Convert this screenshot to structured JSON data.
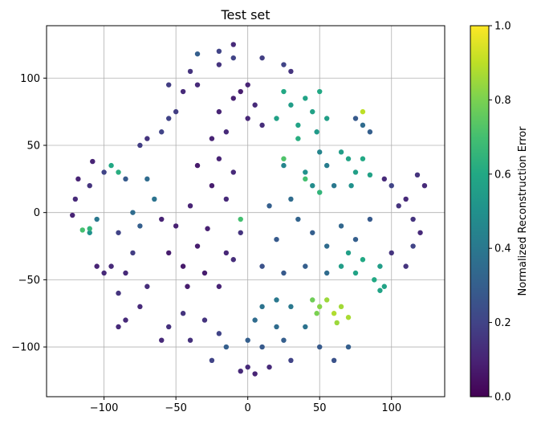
{
  "chart_data": {
    "type": "scatter",
    "title": "Test set",
    "xlabel": "",
    "ylabel": "",
    "xlim": [
      -140,
      137
    ],
    "ylim": [
      -137,
      139
    ],
    "xticks": [
      -100,
      -50,
      0,
      50,
      100
    ],
    "yticks": [
      -100,
      -50,
      0,
      50,
      100
    ],
    "grid": true,
    "colormap": "viridis",
    "colorbar": {
      "label": "Normalized Reconstruction Error",
      "range": [
        0.0,
        1.0
      ],
      "ticks": [
        0.0,
        0.2,
        0.4,
        0.6,
        0.8,
        1.0
      ],
      "tick_labels": [
        "0.0",
        "0.2",
        "0.4",
        "0.6",
        "0.8",
        "1.0"
      ]
    },
    "points": [
      {
        "x": -35,
        "y": -25,
        "c": 0.08
      },
      {
        "x": -45,
        "y": -40,
        "c": 0.07
      },
      {
        "x": -30,
        "y": -45,
        "c": 0.08
      },
      {
        "x": -20,
        "y": -55,
        "c": 0.1
      },
      {
        "x": -50,
        "y": -10,
        "c": 0.09
      },
      {
        "x": -40,
        "y": 5,
        "c": 0.1
      },
      {
        "x": -25,
        "y": 20,
        "c": 0.08
      },
      {
        "x": -35,
        "y": 35,
        "c": 0.07
      },
      {
        "x": -20,
        "y": 40,
        "c": 0.1
      },
      {
        "x": -10,
        "y": 30,
        "c": 0.12
      },
      {
        "x": -15,
        "y": 10,
        "c": 0.12
      },
      {
        "x": -5,
        "y": -15,
        "c": 0.15
      },
      {
        "x": -10,
        "y": -35,
        "c": 0.13
      },
      {
        "x": -55,
        "y": -30,
        "c": 0.08
      },
      {
        "x": -60,
        "y": -5,
        "c": 0.1
      },
      {
        "x": -15,
        "y": -30,
        "c": 0.11
      },
      {
        "x": -28,
        "y": -12,
        "c": 0.09
      },
      {
        "x": -42,
        "y": -55,
        "c": 0.08
      },
      {
        "x": -5,
        "y": 90,
        "c": 0.08
      },
      {
        "x": 0,
        "y": 95,
        "c": 0.1
      },
      {
        "x": -10,
        "y": 85,
        "c": 0.09
      },
      {
        "x": 5,
        "y": 80,
        "c": 0.12
      },
      {
        "x": -20,
        "y": 75,
        "c": 0.1
      },
      {
        "x": 0,
        "y": 70,
        "c": 0.11
      },
      {
        "x": -15,
        "y": 60,
        "c": 0.12
      },
      {
        "x": -25,
        "y": 55,
        "c": 0.1
      },
      {
        "x": 10,
        "y": 65,
        "c": 0.13
      },
      {
        "x": 40,
        "y": 85,
        "c": 0.58
      },
      {
        "x": 50,
        "y": 90,
        "c": 0.6
      },
      {
        "x": 45,
        "y": 75,
        "c": 0.57
      },
      {
        "x": 55,
        "y": 70,
        "c": 0.56
      },
      {
        "x": 35,
        "y": 65,
        "c": 0.58
      },
      {
        "x": 30,
        "y": 80,
        "c": 0.55
      },
      {
        "x": 25,
        "y": 90,
        "c": 0.6
      },
      {
        "x": 20,
        "y": 70,
        "c": 0.57
      },
      {
        "x": 48,
        "y": 60,
        "c": 0.54
      },
      {
        "x": 70,
        "y": 40,
        "c": 0.58
      },
      {
        "x": 75,
        "y": 30,
        "c": 0.56
      },
      {
        "x": 65,
        "y": 45,
        "c": 0.55
      },
      {
        "x": 80,
        "y": 40,
        "c": 0.6
      },
      {
        "x": 85,
        "y": 28,
        "c": 0.57
      },
      {
        "x": 72,
        "y": 20,
        "c": 0.5
      },
      {
        "x": 50,
        "y": 45,
        "c": 0.45
      },
      {
        "x": 55,
        "y": 35,
        "c": 0.42
      },
      {
        "x": 40,
        "y": 30,
        "c": 0.5
      },
      {
        "x": 45,
        "y": 20,
        "c": 0.48
      },
      {
        "x": 25,
        "y": 35,
        "c": 0.45
      },
      {
        "x": 60,
        "y": 20,
        "c": 0.4
      },
      {
        "x": 30,
        "y": 10,
        "c": 0.35
      },
      {
        "x": 15,
        "y": 5,
        "c": 0.3
      },
      {
        "x": 35,
        "y": -5,
        "c": 0.32
      },
      {
        "x": 20,
        "y": -20,
        "c": 0.28
      },
      {
        "x": 45,
        "y": -15,
        "c": 0.3
      },
      {
        "x": 55,
        "y": -25,
        "c": 0.35
      },
      {
        "x": 65,
        "y": -10,
        "c": 0.33
      },
      {
        "x": 75,
        "y": -20,
        "c": 0.3
      },
      {
        "x": 85,
        "y": -5,
        "c": 0.28
      },
      {
        "x": 10,
        "y": -40,
        "c": 0.25
      },
      {
        "x": 25,
        "y": -45,
        "c": 0.28
      },
      {
        "x": 40,
        "y": -40,
        "c": 0.3
      },
      {
        "x": 55,
        "y": -45,
        "c": 0.35
      },
      {
        "x": 65,
        "y": -40,
        "c": 0.55
      },
      {
        "x": 75,
        "y": -45,
        "c": 0.58
      },
      {
        "x": 80,
        "y": -35,
        "c": 0.6
      },
      {
        "x": 70,
        "y": -30,
        "c": 0.56
      },
      {
        "x": 88,
        "y": -50,
        "c": 0.6
      },
      {
        "x": 92,
        "y": -58,
        "c": 0.58
      },
      {
        "x": 55,
        "y": -65,
        "c": 0.85
      },
      {
        "x": 60,
        "y": -75,
        "c": 0.88
      },
      {
        "x": 65,
        "y": -70,
        "c": 0.86
      },
      {
        "x": 70,
        "y": -78,
        "c": 0.87
      },
      {
        "x": 62,
        "y": -82,
        "c": 0.85
      },
      {
        "x": 50,
        "y": -70,
        "c": 0.82
      },
      {
        "x": 45,
        "y": -65,
        "c": 0.78
      },
      {
        "x": 48,
        "y": -75,
        "c": 0.8
      },
      {
        "x": 10,
        "y": -70,
        "c": 0.38
      },
      {
        "x": 20,
        "y": -65,
        "c": 0.4
      },
      {
        "x": 30,
        "y": -70,
        "c": 0.4
      },
      {
        "x": 40,
        "y": -85,
        "c": 0.38
      },
      {
        "x": 20,
        "y": -85,
        "c": 0.35
      },
      {
        "x": 5,
        "y": -80,
        "c": 0.35
      },
      {
        "x": 0,
        "y": -95,
        "c": 0.3
      },
      {
        "x": 10,
        "y": -100,
        "c": 0.28
      },
      {
        "x": 25,
        "y": -95,
        "c": 0.3
      },
      {
        "x": 0,
        "y": -115,
        "c": 0.12
      },
      {
        "x": 5,
        "y": -120,
        "c": 0.1
      },
      {
        "x": -5,
        "y": -118,
        "c": 0.12
      },
      {
        "x": -15,
        "y": -100,
        "c": 0.3
      },
      {
        "x": -20,
        "y": -90,
        "c": 0.2
      },
      {
        "x": -30,
        "y": -80,
        "c": 0.15
      },
      {
        "x": -45,
        "y": -75,
        "c": 0.15
      },
      {
        "x": -55,
        "y": -85,
        "c": 0.14
      },
      {
        "x": -60,
        "y": -95,
        "c": 0.12
      },
      {
        "x": -75,
        "y": -70,
        "c": 0.12
      },
      {
        "x": -85,
        "y": -80,
        "c": 0.12
      },
      {
        "x": -90,
        "y": -60,
        "c": 0.15
      },
      {
        "x": -70,
        "y": -55,
        "c": 0.13
      },
      {
        "x": -85,
        "y": -45,
        "c": 0.12
      },
      {
        "x": -95,
        "y": -40,
        "c": 0.12
      },
      {
        "x": -80,
        "y": -30,
        "c": 0.18
      },
      {
        "x": -90,
        "y": -15,
        "c": 0.2
      },
      {
        "x": -75,
        "y": -10,
        "c": 0.3
      },
      {
        "x": -80,
        "y": 0,
        "c": 0.35
      },
      {
        "x": -65,
        "y": 10,
        "c": 0.38
      },
      {
        "x": -70,
        "y": 25,
        "c": 0.35
      },
      {
        "x": -85,
        "y": 25,
        "c": 0.28
      },
      {
        "x": -95,
        "y": 35,
        "c": 0.6
      },
      {
        "x": -100,
        "y": 30,
        "c": 0.2
      },
      {
        "x": -110,
        "y": 20,
        "c": 0.15
      },
      {
        "x": -105,
        "y": -5,
        "c": 0.4
      },
      {
        "x": -110,
        "y": -15,
        "c": 0.5
      },
      {
        "x": -120,
        "y": 10,
        "c": 0.12
      },
      {
        "x": -122,
        "y": -2,
        "c": 0.1
      },
      {
        "x": -118,
        "y": 25,
        "c": 0.1
      },
      {
        "x": -108,
        "y": 38,
        "c": 0.1
      },
      {
        "x": -105,
        "y": -40,
        "c": 0.1
      },
      {
        "x": -100,
        "y": -45,
        "c": 0.12
      },
      {
        "x": -90,
        "y": -85,
        "c": 0.12
      },
      {
        "x": -75,
        "y": 50,
        "c": 0.18
      },
      {
        "x": -70,
        "y": 55,
        "c": 0.15
      },
      {
        "x": -60,
        "y": 60,
        "c": 0.2
      },
      {
        "x": -55,
        "y": 70,
        "c": 0.2
      },
      {
        "x": -50,
        "y": 75,
        "c": 0.18
      },
      {
        "x": -45,
        "y": 90,
        "c": 0.12
      },
      {
        "x": -40,
        "y": 105,
        "c": 0.15
      },
      {
        "x": -35,
        "y": 95,
        "c": 0.12
      },
      {
        "x": -20,
        "y": 110,
        "c": 0.15
      },
      {
        "x": -10,
        "y": 115,
        "c": 0.2
      },
      {
        "x": 10,
        "y": 115,
        "c": 0.18
      },
      {
        "x": 25,
        "y": 110,
        "c": 0.2
      },
      {
        "x": 30,
        "y": 105,
        "c": 0.15
      },
      {
        "x": -55,
        "y": 95,
        "c": 0.18
      },
      {
        "x": -35,
        "y": 118,
        "c": 0.3
      },
      {
        "x": -20,
        "y": 120,
        "c": 0.2
      },
      {
        "x": -10,
        "y": 125,
        "c": 0.12
      },
      {
        "x": 75,
        "y": 70,
        "c": 0.28
      },
      {
        "x": 80,
        "y": 65,
        "c": 0.35
      },
      {
        "x": 85,
        "y": 60,
        "c": 0.3
      },
      {
        "x": 80,
        "y": 75,
        "c": 0.9
      },
      {
        "x": 95,
        "y": 25,
        "c": 0.12
      },
      {
        "x": 100,
        "y": 20,
        "c": 0.2
      },
      {
        "x": 105,
        "y": 5,
        "c": 0.15
      },
      {
        "x": 110,
        "y": 10,
        "c": 0.12
      },
      {
        "x": 115,
        "y": -5,
        "c": 0.15
      },
      {
        "x": 120,
        "y": -15,
        "c": 0.12
      },
      {
        "x": 118,
        "y": 28,
        "c": 0.15
      },
      {
        "x": 123,
        "y": 20,
        "c": 0.12
      },
      {
        "x": 100,
        "y": -30,
        "c": 0.15
      },
      {
        "x": 110,
        "y": -40,
        "c": 0.15
      },
      {
        "x": 115,
        "y": -25,
        "c": 0.2
      },
      {
        "x": 92,
        "y": -40,
        "c": 0.55
      },
      {
        "x": 95,
        "y": -55,
        "c": 0.58
      },
      {
        "x": 70,
        "y": -100,
        "c": 0.3
      },
      {
        "x": 60,
        "y": -110,
        "c": 0.25
      },
      {
        "x": 50,
        "y": -100,
        "c": 0.28
      },
      {
        "x": 30,
        "y": -110,
        "c": 0.2
      },
      {
        "x": 15,
        "y": -115,
        "c": 0.12
      },
      {
        "x": -25,
        "y": -110,
        "c": 0.2
      },
      {
        "x": -40,
        "y": -95,
        "c": 0.14
      },
      {
        "x": 40,
        "y": 25,
        "c": 0.7
      },
      {
        "x": 25,
        "y": 40,
        "c": 0.72
      },
      {
        "x": 50,
        "y": 15,
        "c": 0.65
      },
      {
        "x": 35,
        "y": 55,
        "c": 0.62
      },
      {
        "x": -90,
        "y": 30,
        "c": 0.62
      },
      {
        "x": -110,
        "y": -12,
        "c": 0.65
      },
      {
        "x": -5,
        "y": -5,
        "c": 0.7
      },
      {
        "x": -115,
        "y": -13,
        "c": 0.7
      }
    ]
  }
}
